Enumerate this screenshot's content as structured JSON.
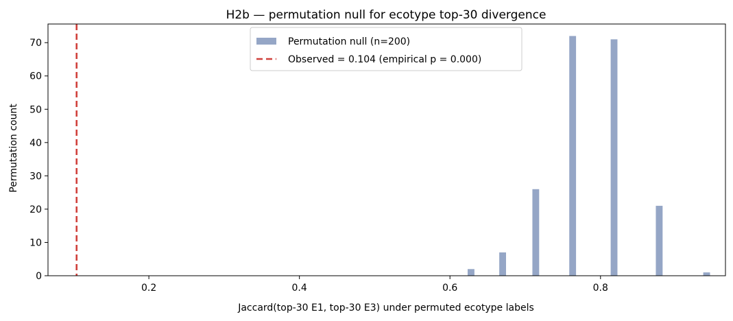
{
  "chart_data": {
    "type": "bar",
    "title": "H2b — permutation null for ecotype top-30 divergence",
    "xlabel": "Jaccard(top-30 E1, top-30 E3) under permuted ecotype labels",
    "ylabel": "Permutation count",
    "xlim": [
      0.066,
      0.966
    ],
    "ylim": [
      0,
      75.6
    ],
    "xticks": [
      0.2,
      0.4,
      0.6,
      0.8
    ],
    "xtick_labels": [
      "0.2",
      "0.4",
      "0.6",
      "0.8"
    ],
    "yticks": [
      0,
      10,
      20,
      30,
      40,
      50,
      60,
      70
    ],
    "ytick_labels": [
      "0",
      "10",
      "20",
      "30",
      "40",
      "50",
      "60",
      "70"
    ],
    "grid": false,
    "legend_position": "top-center",
    "series": [
      {
        "name": "Permutation null (n=200)",
        "kind": "histogram",
        "color": "#95a6c6",
        "bin_width": 0.009,
        "bins": [
          {
            "x": 0.628,
            "count": 2
          },
          {
            "x": 0.67,
            "count": 7
          },
          {
            "x": 0.714,
            "count": 26
          },
          {
            "x": 0.763,
            "count": 72
          },
          {
            "x": 0.818,
            "count": 71
          },
          {
            "x": 0.878,
            "count": 21
          },
          {
            "x": 0.941,
            "count": 1
          }
        ]
      },
      {
        "name": "Observed = 0.104 (empirical p = 0.000)",
        "kind": "vline",
        "color": "#d0403b",
        "style": "dashed",
        "x": 0.104
      }
    ]
  }
}
